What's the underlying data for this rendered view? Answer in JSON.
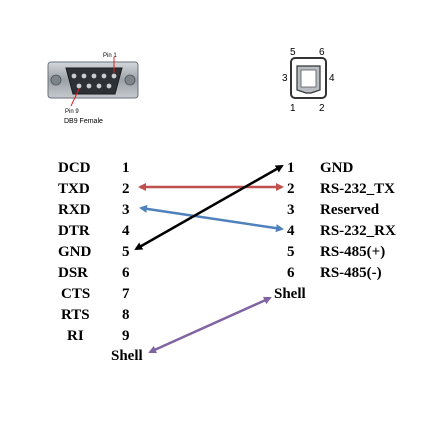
{
  "db9": {
    "pin1_label": "Pin 1",
    "pin9_label": "Pin 9",
    "caption": "DB9 Female"
  },
  "connector6": {
    "pin_numbers": [
      "5",
      "6",
      "3",
      "4",
      "1",
      "2"
    ]
  },
  "left_signals": [
    {
      "name": "DCD",
      "pin": "1"
    },
    {
      "name": "TXD",
      "pin": "2"
    },
    {
      "name": "RXD",
      "pin": "3"
    },
    {
      "name": "DTR",
      "pin": "4"
    },
    {
      "name": "GND",
      "pin": "5"
    },
    {
      "name": "DSR",
      "pin": "6"
    },
    {
      "name": "CTS",
      "pin": "7"
    },
    {
      "name": "RTS",
      "pin": "8"
    },
    {
      "name": "RI",
      "pin": "9"
    }
  ],
  "left_shell": "Shell",
  "right_signals": [
    {
      "pin": "1",
      "name": "GND"
    },
    {
      "pin": "2",
      "name": "RS-232_TX"
    },
    {
      "pin": "3",
      "name": "Reserved"
    },
    {
      "pin": "4",
      "name": "RS-232_RX"
    },
    {
      "pin": "5",
      "name": "RS-485(+)"
    },
    {
      "pin": "6",
      "name": "RS-485(-)"
    }
  ],
  "right_shell": "Shell",
  "colors": {
    "txd_link": "#c0504d",
    "rxd_link": "#4f81bd",
    "gnd_link": "#000000",
    "shell_link": "#8064a2",
    "pin_marker": "#e02020"
  }
}
